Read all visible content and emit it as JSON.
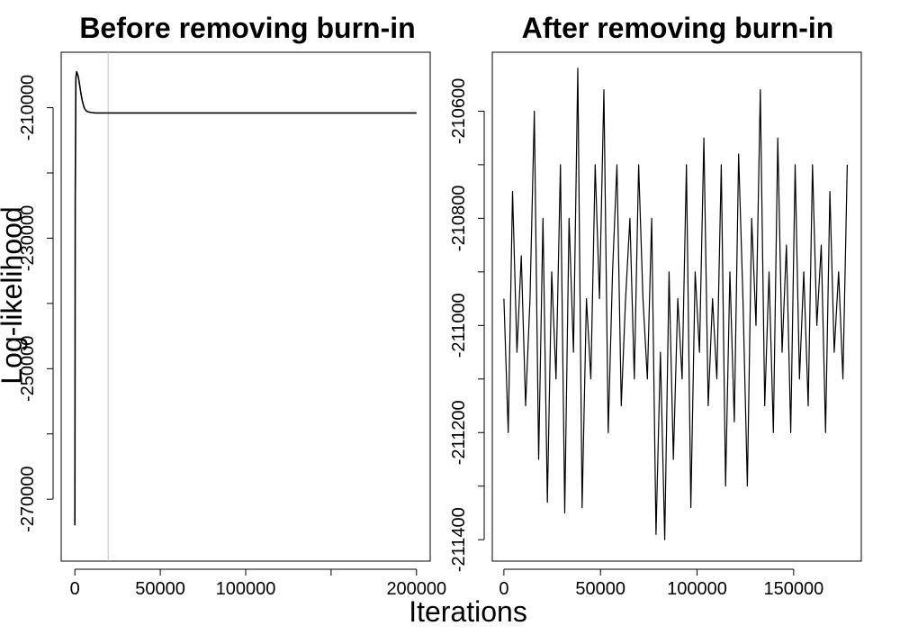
{
  "figure": {
    "shared_xlabel": "Iterations",
    "shared_ylabel": "Log-likelihood"
  },
  "chart_data": [
    {
      "type": "line",
      "title": "Before removing burn-in",
      "xlabel": "Iterations",
      "ylabel": "Log-likelihood",
      "xlim": [
        -8000,
        208000
      ],
      "ylim": [
        -279500,
        -201500
      ],
      "xticks": [
        0,
        50000,
        100000,
        150000,
        200000
      ],
      "xtick_labels": [
        "0",
        "50000",
        "100000",
        "",
        "200000"
      ],
      "yticks": [
        -210000,
        -220000,
        -230000,
        -240000,
        -250000,
        -260000,
        -270000
      ],
      "ytick_labels": [
        "-210000",
        "",
        "-230000",
        "",
        "-250000",
        "",
        "-270000"
      ],
      "grid": false,
      "color": "#000000",
      "burn_in_marker": {
        "x": 19500,
        "color": "#c0c0c0"
      },
      "series": [
        {
          "x": [
            0,
            200,
            600,
            1000,
            1500,
            2000,
            2500,
            3000,
            3500,
            4000,
            4500,
            5000,
            5500,
            6000,
            7000,
            8000,
            10000,
            12000,
            15000,
            20000,
            200000
          ],
          "values": [
            -274000,
            -224000,
            -205500,
            -204500,
            -204800,
            -205300,
            -206000,
            -206900,
            -207700,
            -208500,
            -209100,
            -209600,
            -210000,
            -210300,
            -210550,
            -210650,
            -210750,
            -210800,
            -210800,
            -210800,
            -210800
          ]
        }
      ]
    },
    {
      "type": "line",
      "title": "After removing burn-in",
      "xlabel": "Iterations",
      "ylabel": "Log-likelihood",
      "xlim": [
        -6000,
        185000
      ],
      "ylim": [
        -211440,
        -210490
      ],
      "xticks": [
        0,
        50000,
        100000,
        150000
      ],
      "xtick_labels": [
        "0",
        "50000",
        "100000",
        "150000"
      ],
      "yticks": [
        -210600,
        -210700,
        -210800,
        -210900,
        -211000,
        -211100,
        -211200,
        -211300,
        -211400
      ],
      "ytick_labels": [
        "-210600",
        "",
        "-210800",
        "",
        "-211000",
        "",
        "-211200",
        "",
        "-211400"
      ],
      "grid": false,
      "color": "#000000",
      "series": [
        {
          "x_start": 0,
          "x_step": 2250,
          "values": [
            -210950,
            -211200,
            -210750,
            -211050,
            -210870,
            -211150,
            -210950,
            -210600,
            -211250,
            -210800,
            -211330,
            -210900,
            -211100,
            -210700,
            -211350,
            -210800,
            -211050,
            -210520,
            -211340,
            -210950,
            -211100,
            -210700,
            -210950,
            -210560,
            -211200,
            -210900,
            -210700,
            -211150,
            -210950,
            -210800,
            -211100,
            -210700,
            -210950,
            -211100,
            -210800,
            -211390,
            -211050,
            -211400,
            -210900,
            -211250,
            -210950,
            -211100,
            -210700,
            -211340,
            -210900,
            -211050,
            -210650,
            -211150,
            -210950,
            -211100,
            -210700,
            -211300,
            -210900,
            -211180,
            -210680,
            -210950,
            -211300,
            -210800,
            -211000,
            -210560,
            -211150,
            -210900,
            -211200,
            -210650,
            -211050,
            -210850,
            -211200,
            -210700,
            -211100,
            -210900,
            -211150,
            -210700,
            -211000,
            -210850,
            -211200,
            -210750,
            -211050,
            -210900,
            -211100,
            -210700
          ]
        }
      ]
    }
  ]
}
